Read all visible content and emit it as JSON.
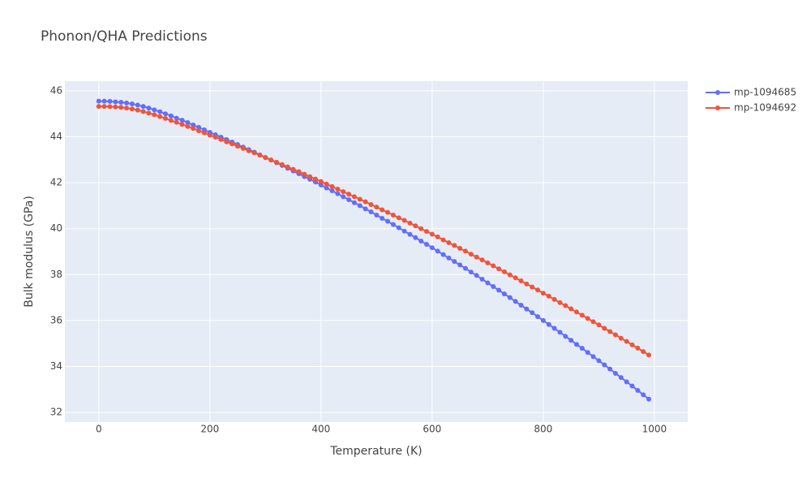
{
  "chart_data": {
    "type": "line",
    "title": "Phonon/QHA Predictions",
    "xlabel": "Temperature (K)",
    "ylabel": "Bulk modulus (GPa)",
    "x": [
      0,
      10,
      20,
      30,
      40,
      50,
      60,
      70,
      80,
      90,
      100,
      110,
      120,
      130,
      140,
      150,
      160,
      170,
      180,
      190,
      200,
      210,
      220,
      230,
      240,
      250,
      260,
      270,
      280,
      290,
      300,
      310,
      320,
      330,
      340,
      350,
      360,
      370,
      380,
      390,
      400,
      410,
      420,
      430,
      440,
      450,
      460,
      470,
      480,
      490,
      500,
      510,
      520,
      530,
      540,
      550,
      560,
      570,
      580,
      590,
      600,
      610,
      620,
      630,
      640,
      650,
      660,
      670,
      680,
      690,
      700,
      710,
      720,
      730,
      740,
      750,
      760,
      770,
      780,
      790,
      800,
      810,
      820,
      830,
      840,
      850,
      860,
      870,
      880,
      890,
      900,
      910,
      920,
      930,
      940,
      950,
      960,
      970,
      980,
      990
    ],
    "series": [
      {
        "name": "mp-1094685",
        "color": "#636efa",
        "values": [
          45.55,
          45.55,
          45.54,
          45.52,
          45.5,
          45.47,
          45.43,
          45.38,
          45.32,
          45.25,
          45.17,
          45.09,
          45.0,
          44.91,
          44.81,
          44.72,
          44.62,
          44.51,
          44.41,
          44.3,
          44.19,
          44.09,
          43.98,
          43.88,
          43.77,
          43.66,
          43.55,
          43.44,
          43.33,
          43.21,
          43.1,
          42.99,
          42.87,
          42.75,
          42.63,
          42.51,
          42.39,
          42.27,
          42.15,
          42.03,
          41.9,
          41.77,
          41.65,
          41.52,
          41.39,
          41.26,
          41.13,
          41.0,
          40.86,
          40.73,
          40.59,
          40.45,
          40.32,
          40.18,
          40.04,
          39.89,
          39.75,
          39.61,
          39.46,
          39.32,
          39.17,
          39.02,
          38.87,
          38.72,
          38.57,
          38.42,
          38.27,
          38.11,
          37.96,
          37.8,
          37.64,
          37.48,
          37.32,
          37.16,
          37.0,
          36.83,
          36.67,
          36.5,
          36.34,
          36.17,
          36.0,
          35.83,
          35.66,
          35.49,
          35.31,
          35.14,
          34.96,
          34.79,
          34.61,
          34.43,
          34.25,
          34.07,
          33.89,
          33.7,
          33.52,
          33.33,
          33.15,
          32.96,
          32.77,
          32.58
        ]
      },
      {
        "name": "mp-1094692",
        "color": "#ef553b",
        "values": [
          45.32,
          45.32,
          45.31,
          45.3,
          45.28,
          45.25,
          45.21,
          45.16,
          45.1,
          45.03,
          44.96,
          44.88,
          44.8,
          44.71,
          44.63,
          44.54,
          44.45,
          44.36,
          44.26,
          44.17,
          44.07,
          43.98,
          43.88,
          43.78,
          43.69,
          43.59,
          43.49,
          43.39,
          43.3,
          43.2,
          43.09,
          42.99,
          42.89,
          42.79,
          42.69,
          42.58,
          42.48,
          42.37,
          42.26,
          42.16,
          42.05,
          41.94,
          41.83,
          41.72,
          41.61,
          41.5,
          41.39,
          41.28,
          41.17,
          41.05,
          40.94,
          40.82,
          40.71,
          40.59,
          40.47,
          40.36,
          40.24,
          40.12,
          40.0,
          39.88,
          39.76,
          39.64,
          39.51,
          39.39,
          39.27,
          39.14,
          39.02,
          38.89,
          38.76,
          38.64,
          38.51,
          38.38,
          38.25,
          38.12,
          37.99,
          37.86,
          37.73,
          37.59,
          37.46,
          37.33,
          37.19,
          37.06,
          36.92,
          36.78,
          36.65,
          36.51,
          36.37,
          36.23,
          36.09,
          35.95,
          35.81,
          35.66,
          35.52,
          35.38,
          35.23,
          35.09,
          34.94,
          34.8,
          34.65,
          34.5
        ]
      }
    ],
    "xlim": [
      -61,
      1060
    ],
    "xticks": [
      0,
      200,
      400,
      600,
      800,
      1000
    ],
    "ylim": [
      31.58,
      46.42
    ],
    "yticks": [
      32,
      34,
      36,
      38,
      40,
      42,
      44,
      46
    ],
    "grid": true,
    "legend": "right",
    "markers": true
  }
}
